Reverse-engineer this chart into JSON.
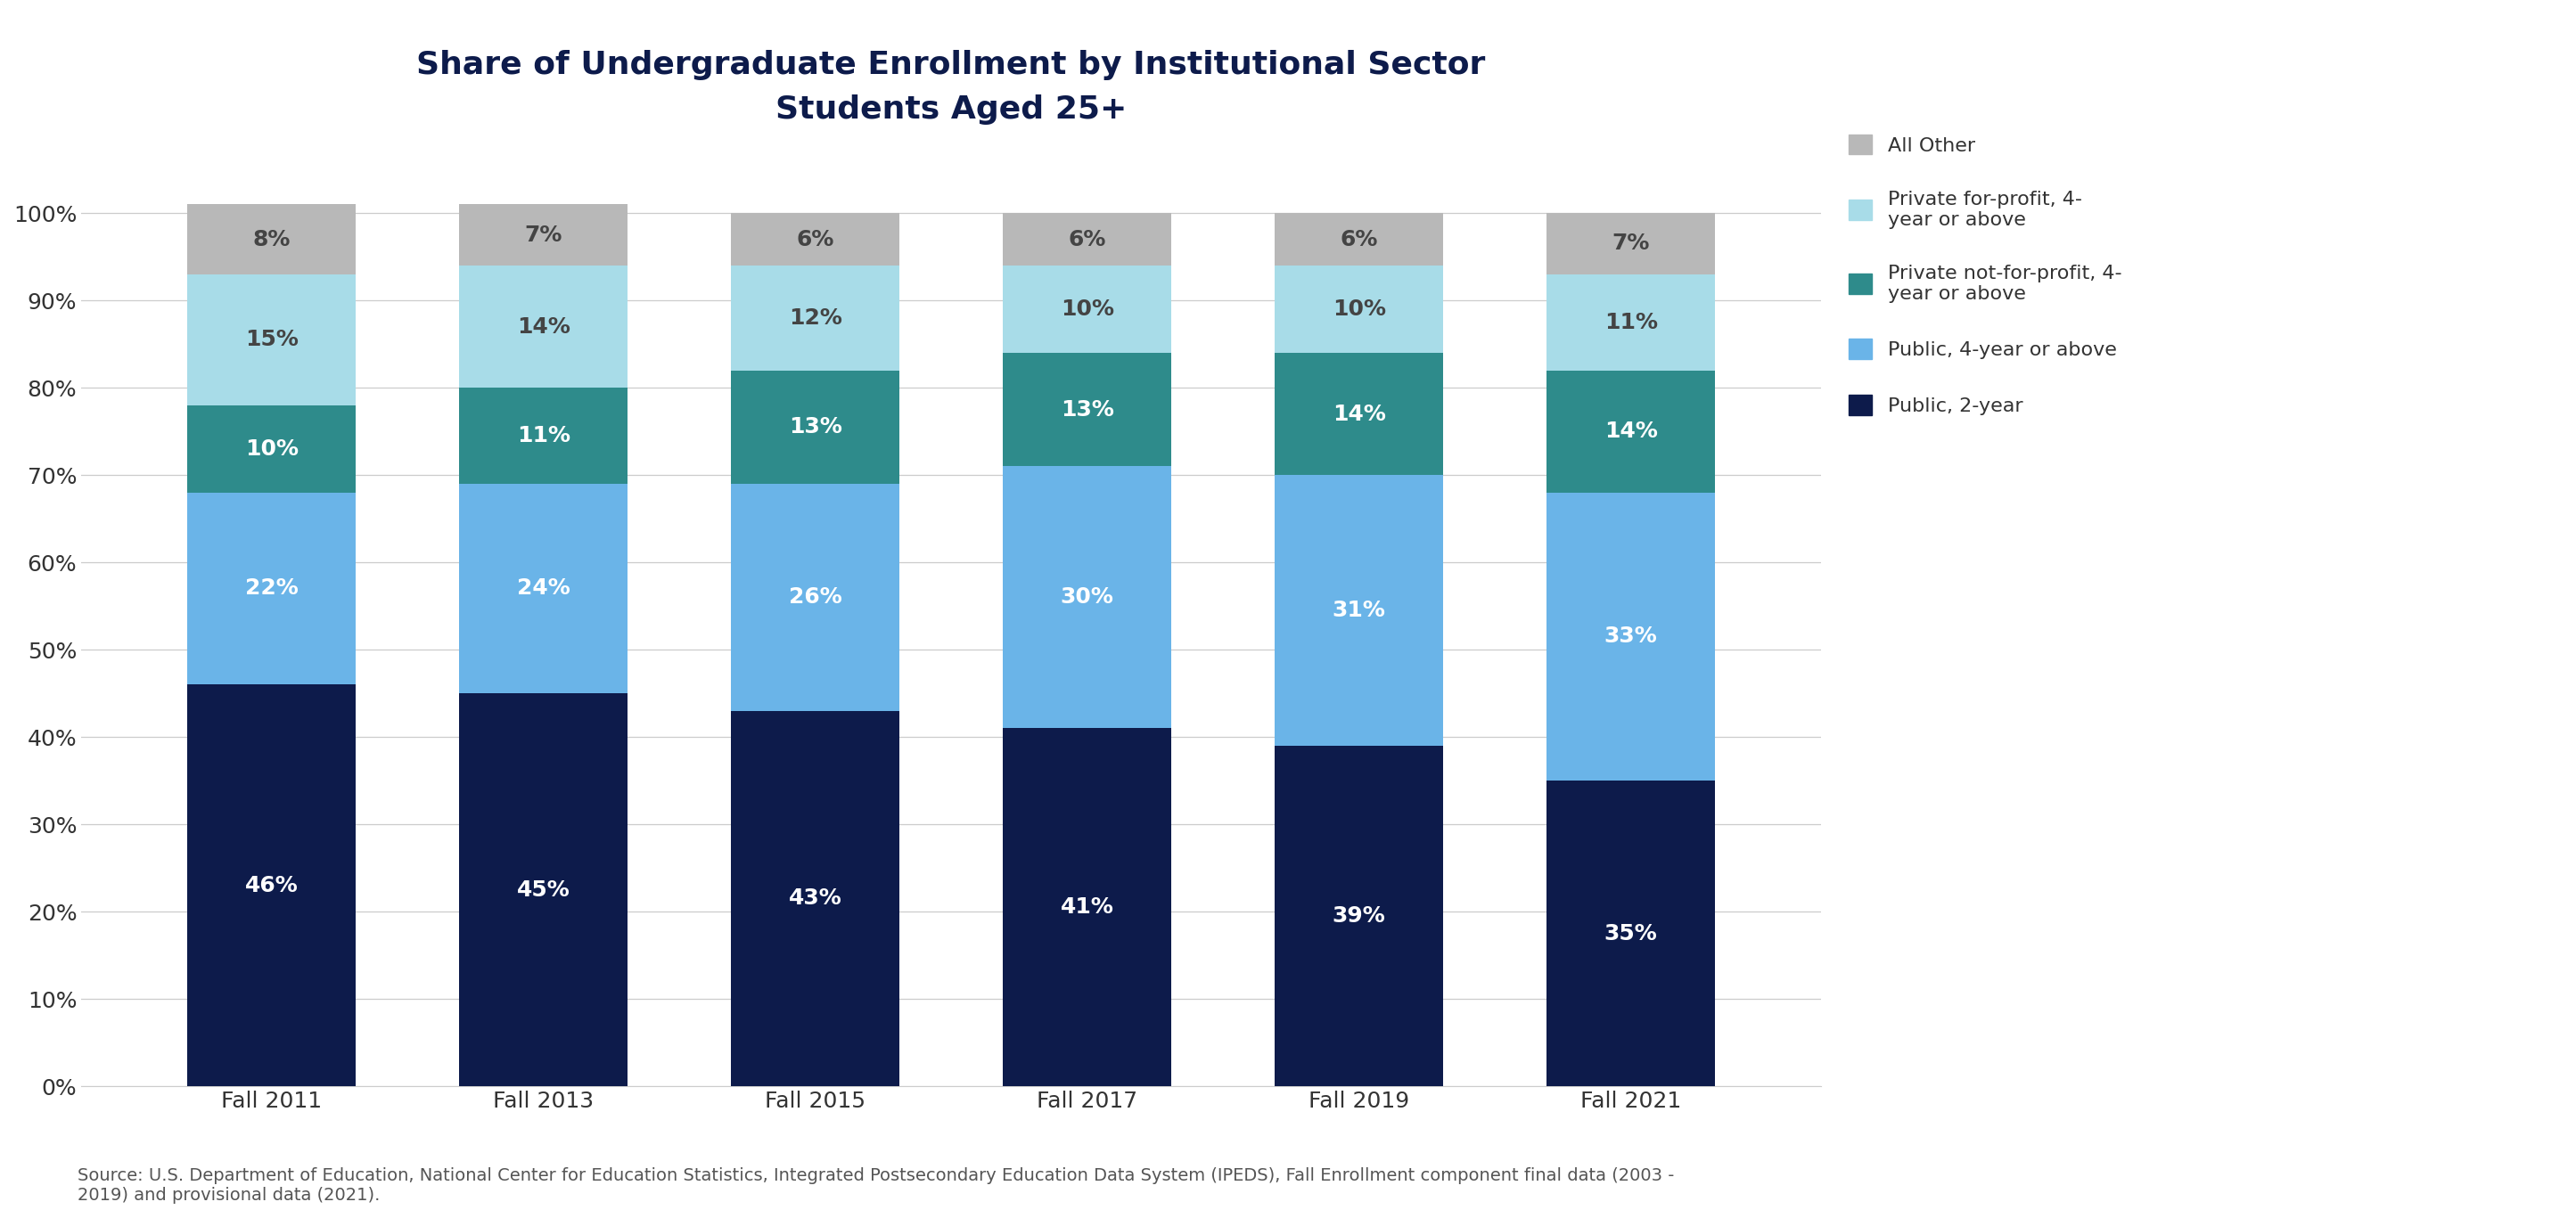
{
  "title_line1": "Share of Undergraduate Enrollment by Institutional Sector",
  "title_line2": "Students Aged 25+",
  "categories": [
    "Fall 2011",
    "Fall 2013",
    "Fall 2015",
    "Fall 2017",
    "Fall 2019",
    "Fall 2021"
  ],
  "series": {
    "Public, 2-year": [
      46,
      45,
      43,
      41,
      39,
      35
    ],
    "Public, 4-year or above": [
      22,
      24,
      26,
      30,
      31,
      33
    ],
    "Private not-for-profit, 4-year or above": [
      10,
      11,
      13,
      13,
      14,
      14
    ],
    "Private for-profit, 4-year or above": [
      15,
      14,
      12,
      10,
      10,
      11
    ],
    "All Other": [
      8,
      7,
      6,
      6,
      6,
      7
    ]
  },
  "colors": {
    "Public, 2-year": "#0d1b4b",
    "Public, 4-year or above": "#6ab4e8",
    "Private not-for-profit, 4-year or above": "#2e8b8b",
    "Private for-profit, 4-year or above": "#a8dce8",
    "All Other": "#b8b8b8"
  },
  "label_text_colors": {
    "Public, 2-year": "white",
    "Public, 4-year or above": "white",
    "Private not-for-profit, 4-year or above": "white",
    "Private for-profit, 4-year or above": "#444444",
    "All Other": "#444444"
  },
  "legend_order": [
    "All Other",
    "Private for-profit, 4-year or above",
    "Private not-for-profit, 4-year or above",
    "Public, 4-year or above",
    "Public, 2-year"
  ],
  "legend_labels": {
    "All Other": "All Other",
    "Private for-profit, 4-year or above": "Private for-profit, 4-\nyear or above",
    "Private not-for-profit, 4-year or above": "Private not-for-profit, 4-\nyear or above",
    "Public, 4-year or above": "Public, 4-year or above",
    "Public, 2-year": "Public, 2-year"
  },
  "yticks": [
    0,
    10,
    20,
    30,
    40,
    50,
    60,
    70,
    80,
    90,
    100
  ],
  "ylim": [
    0,
    108
  ],
  "bar_width": 0.62,
  "footnote": "Source: U.S. Department of Education, National Center for Education Statistics, Integrated Postsecondary Education Data System (IPEDS), Fall Enrollment component final data (2003 -\n2019) and provisional data (2021).",
  "background_color": "#ffffff",
  "title_color": "#0d1b4b",
  "axis_text_color": "#333333",
  "grid_color": "#cccccc",
  "title_fontsize": 26,
  "subtitle_fontsize": 22,
  "label_fontsize": 18,
  "tick_fontsize": 18,
  "legend_fontsize": 16,
  "footnote_fontsize": 14
}
